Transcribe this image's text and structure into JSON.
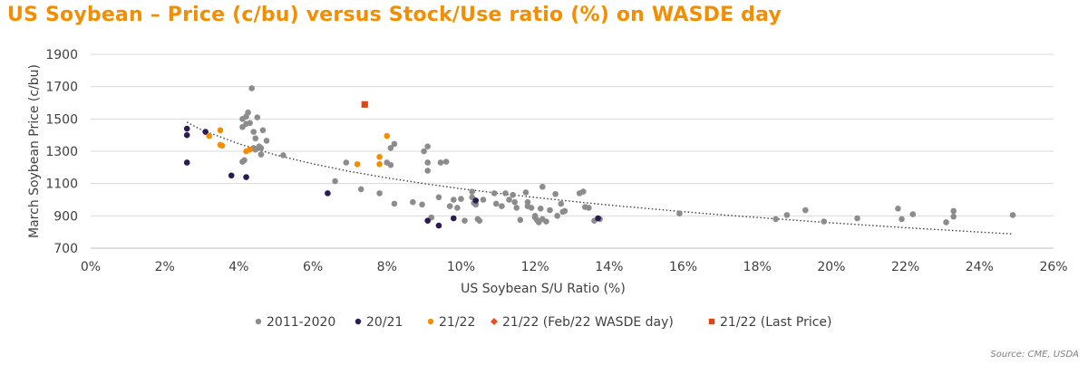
{
  "chart_data": {
    "type": "scatter",
    "title": "US Soybean – Price (c/bu) versus Stock/Use ratio (%) on WASDE day",
    "xlabel": "US Soybean S/U Ratio (%)",
    "ylabel": "March Soybean Price (c/bu)",
    "xlim": [
      0,
      26
    ],
    "ylim": [
      700,
      1900
    ],
    "x_ticks": [
      0,
      2,
      4,
      6,
      8,
      10,
      12,
      14,
      16,
      18,
      20,
      22,
      24,
      26
    ],
    "x_tick_labels": [
      "0%",
      "2%",
      "4%",
      "6%",
      "8%",
      "10%",
      "12%",
      "14%",
      "16%",
      "18%",
      "20%",
      "22%",
      "24%",
      "26%"
    ],
    "y_ticks": [
      700,
      900,
      1100,
      1300,
      1500,
      1700,
      1900
    ],
    "y_tick_labels": [
      "700",
      "900",
      "1100",
      "1300",
      "1500",
      "1700",
      "1900"
    ],
    "grid": "horizontal",
    "legend_position": "bottom",
    "source": "Source: CME, USDA",
    "trendline": {
      "style": "dotted",
      "color": "#404040",
      "x": [
        2.6,
        3,
        4,
        5,
        6,
        7,
        8,
        9,
        10,
        11,
        12,
        13,
        14,
        15,
        16,
        17,
        18,
        19,
        20,
        21,
        22,
        23,
        24,
        24.9
      ],
      "y": [
        1480,
        1432,
        1346,
        1277,
        1222,
        1175,
        1135,
        1100,
        1068,
        1040,
        1014,
        990,
        967,
        946,
        926,
        907,
        890,
        873,
        857,
        842,
        827,
        813,
        800,
        788
      ]
    },
    "series": [
      {
        "name": "2011-2020",
        "marker": "circle",
        "color": "#8c8c8c",
        "points": [
          [
            4.1,
            1235
          ],
          [
            4.15,
            1245
          ],
          [
            4.1,
            1450
          ],
          [
            4.1,
            1500
          ],
          [
            4.2,
            1470
          ],
          [
            4.25,
            1540
          ],
          [
            4.2,
            1515
          ],
          [
            4.3,
            1475
          ],
          [
            4.35,
            1690
          ],
          [
            4.4,
            1420
          ],
          [
            4.45,
            1380
          ],
          [
            4.4,
            1320
          ],
          [
            4.5,
            1510
          ],
          [
            4.55,
            1330
          ],
          [
            4.6,
            1280
          ],
          [
            4.6,
            1320
          ],
          [
            4.65,
            1430
          ],
          [
            4.75,
            1365
          ],
          [
            4.45,
            1310
          ],
          [
            5.2,
            1275
          ],
          [
            6.6,
            1115
          ],
          [
            6.9,
            1230
          ],
          [
            7.3,
            1065
          ],
          [
            7.8,
            1040
          ],
          [
            8.0,
            1230
          ],
          [
            8.1,
            1215
          ],
          [
            8.1,
            1320
          ],
          [
            8.2,
            1345
          ],
          [
            8.2,
            975
          ],
          [
            8.7,
            985
          ],
          [
            8.95,
            970
          ],
          [
            9.0,
            1300
          ],
          [
            9.1,
            1330
          ],
          [
            9.1,
            1230
          ],
          [
            9.1,
            1180
          ],
          [
            9.2,
            890
          ],
          [
            9.4,
            1015
          ],
          [
            9.45,
            1230
          ],
          [
            9.6,
            1235
          ],
          [
            9.7,
            960
          ],
          [
            9.8,
            1000
          ],
          [
            9.9,
            950
          ],
          [
            10.0,
            1005
          ],
          [
            10.1,
            870
          ],
          [
            10.3,
            1050
          ],
          [
            10.3,
            1015
          ],
          [
            10.35,
            980
          ],
          [
            10.4,
            970
          ],
          [
            10.45,
            880
          ],
          [
            10.5,
            870
          ],
          [
            10.6,
            1000
          ],
          [
            10.9,
            1040
          ],
          [
            10.95,
            975
          ],
          [
            11.1,
            960
          ],
          [
            11.2,
            1040
          ],
          [
            11.3,
            1000
          ],
          [
            11.4,
            1030
          ],
          [
            11.45,
            985
          ],
          [
            11.5,
            950
          ],
          [
            11.6,
            875
          ],
          [
            11.75,
            1045
          ],
          [
            11.8,
            985
          ],
          [
            11.8,
            960
          ],
          [
            11.9,
            950
          ],
          [
            12.0,
            890
          ],
          [
            12.0,
            900
          ],
          [
            12.05,
            875
          ],
          [
            12.1,
            860
          ],
          [
            12.15,
            945
          ],
          [
            12.2,
            880
          ],
          [
            12.2,
            1080
          ],
          [
            12.3,
            865
          ],
          [
            12.4,
            935
          ],
          [
            12.55,
            1035
          ],
          [
            12.6,
            900
          ],
          [
            12.7,
            975
          ],
          [
            12.75,
            925
          ],
          [
            12.8,
            930
          ],
          [
            13.2,
            1040
          ],
          [
            13.3,
            1050
          ],
          [
            13.35,
            955
          ],
          [
            13.45,
            950
          ],
          [
            13.6,
            870
          ],
          [
            13.75,
            880
          ],
          [
            15.9,
            915
          ],
          [
            18.5,
            880
          ],
          [
            18.8,
            905
          ],
          [
            19.3,
            935
          ],
          [
            19.8,
            865
          ],
          [
            20.7,
            885
          ],
          [
            21.8,
            945
          ],
          [
            21.9,
            880
          ],
          [
            22.2,
            910
          ],
          [
            23.1,
            860
          ],
          [
            23.3,
            895
          ],
          [
            23.3,
            930
          ],
          [
            24.9,
            905
          ]
        ]
      },
      {
        "name": "20/21",
        "marker": "circle",
        "color": "#2b1a55",
        "points": [
          [
            2.6,
            1440
          ],
          [
            2.6,
            1400
          ],
          [
            2.6,
            1230
          ],
          [
            3.1,
            1420
          ],
          [
            3.8,
            1150
          ],
          [
            4.2,
            1140
          ],
          [
            6.4,
            1040
          ],
          [
            9.1,
            870
          ],
          [
            9.4,
            840
          ],
          [
            9.8,
            885
          ],
          [
            10.4,
            995
          ],
          [
            13.7,
            885
          ]
        ]
      },
      {
        "name": "21/22",
        "marker": "circle",
        "color": "#f28e00",
        "points": [
          [
            3.2,
            1395
          ],
          [
            3.5,
            1430
          ],
          [
            3.5,
            1340
          ],
          [
            3.55,
            1335
          ],
          [
            4.2,
            1300
          ],
          [
            4.3,
            1310
          ],
          [
            7.2,
            1220
          ],
          [
            7.8,
            1265
          ],
          [
            7.8,
            1220
          ],
          [
            8.0,
            1395
          ]
        ]
      },
      {
        "name": "21/22 (Feb/22 WASDE day)",
        "marker": "diamond",
        "color": "#e8501e",
        "points": []
      },
      {
        "name": "21/22 (Last Price)",
        "marker": "square",
        "color": "#e04412",
        "points": [
          [
            7.4,
            1590
          ]
        ]
      }
    ]
  }
}
